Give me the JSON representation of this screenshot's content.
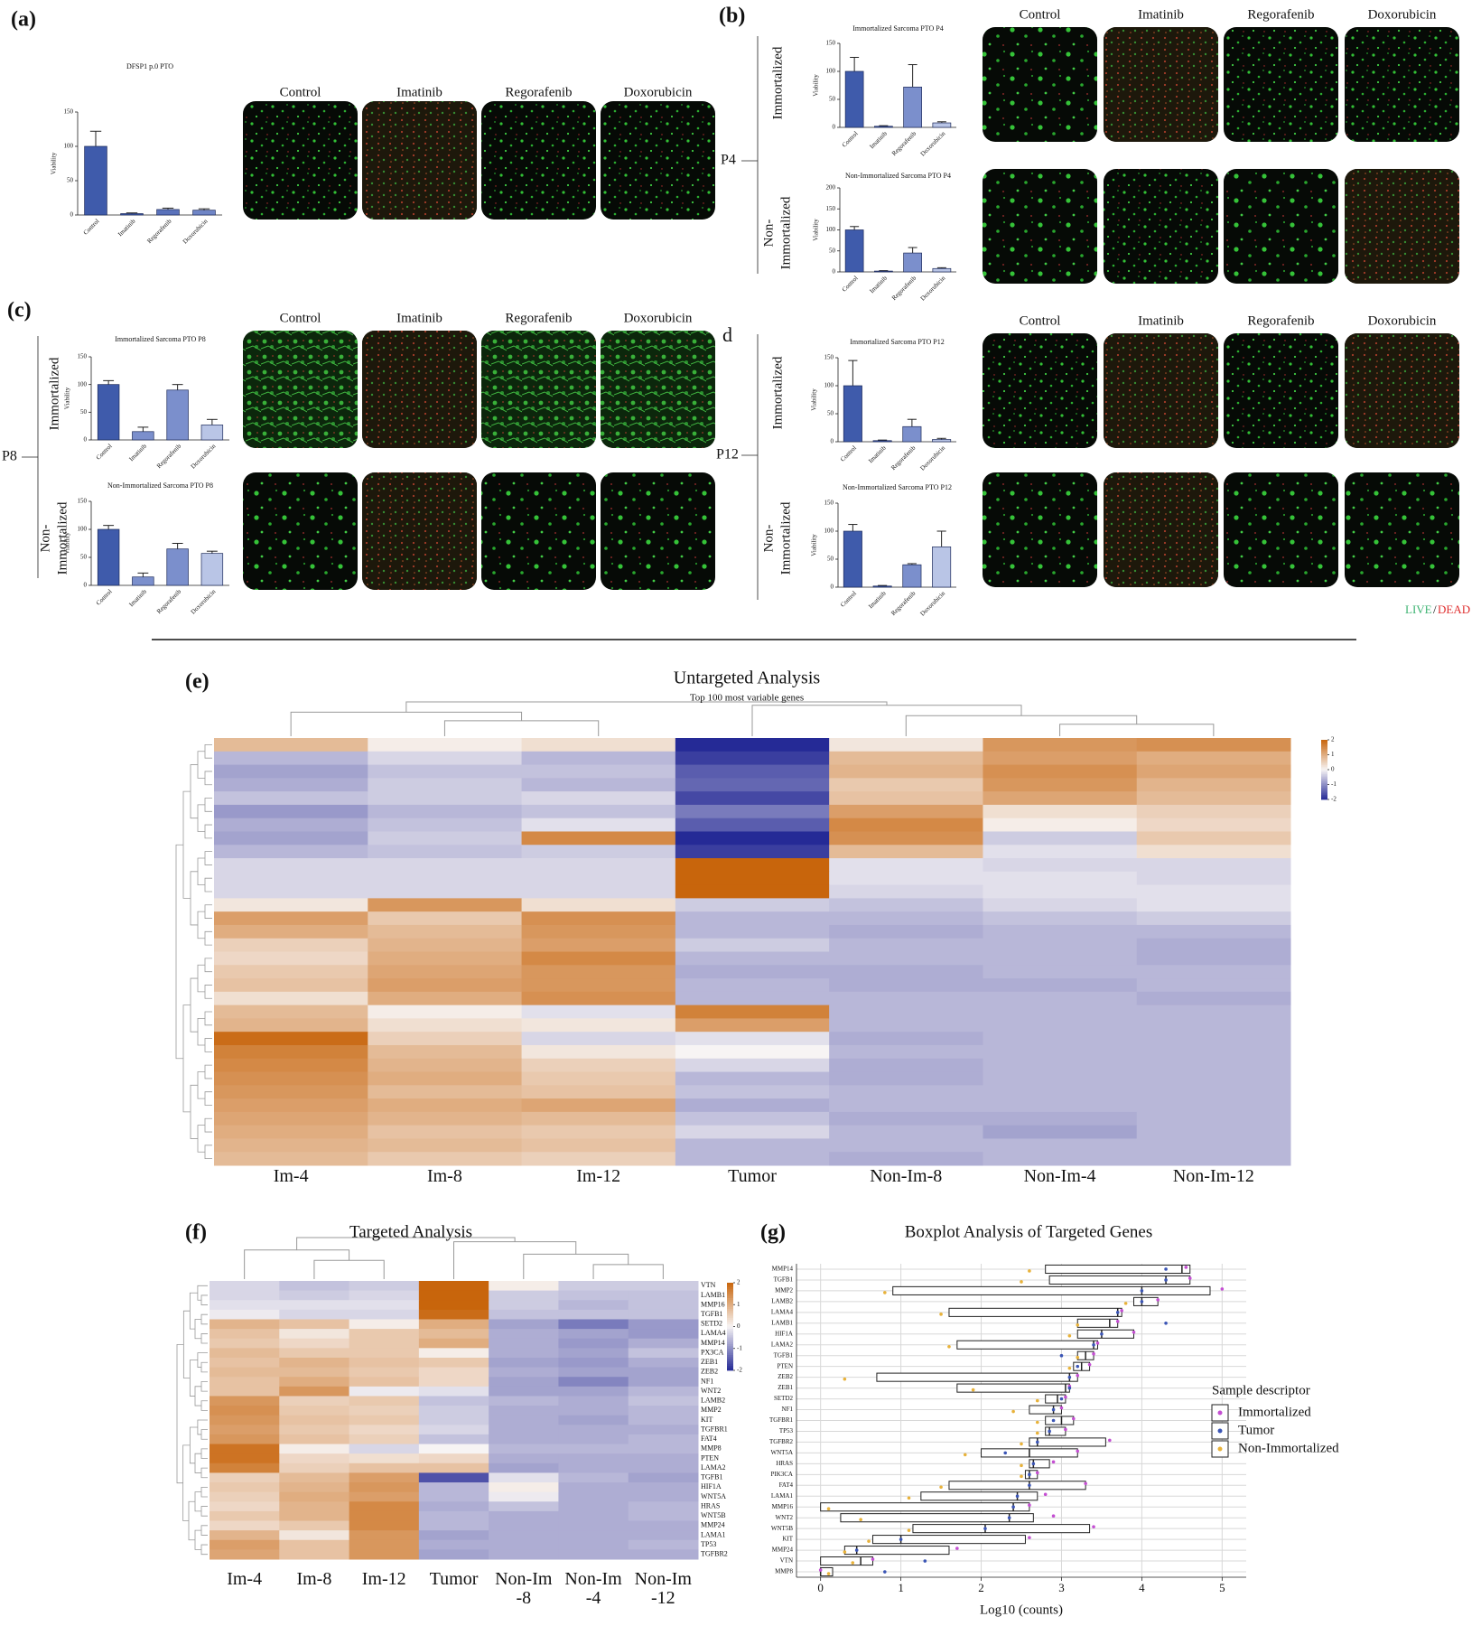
{
  "panel_labels": {
    "a": "(a)",
    "b": "(b)",
    "c": "(c)",
    "d": "d",
    "e": "(e)",
    "f": "(f)",
    "g": "(g)"
  },
  "treatments": [
    "Control",
    "Imatinib",
    "Regorafenib",
    "Doxorubicin"
  ],
  "groups": {
    "b": "P4",
    "c": "P8",
    "d": "P12"
  },
  "row_labels": {
    "immortalized": "Immortalized",
    "non_immortalized": [
      "Non-",
      "Immortalized"
    ]
  },
  "live_dead": {
    "live": "LIVE",
    "slash": "/",
    "dead": "DEAD"
  },
  "chart_data": [
    {
      "type": "bar",
      "title": "DFSP1 p.0 PTO",
      "y_label": "Viability",
      "categories": [
        "Control",
        "Imatinib",
        "Regorafenib",
        "Doxorubicin"
      ],
      "values": [
        100,
        2,
        8,
        7
      ],
      "errors": [
        22,
        1,
        2,
        2
      ],
      "colors": [
        "#3f5bab",
        "#3f5bab",
        "#5a72bb",
        "#6f85c6"
      ],
      "ylim": [
        0,
        150
      ],
      "yticks": [
        0,
        50,
        100,
        150
      ]
    },
    {
      "type": "bar",
      "title": "Immortalized Sarcoma PTO P4",
      "y_label": "Viability",
      "categories": [
        "Control",
        "Imatinib",
        "Regorafenib",
        "Doxorubicin"
      ],
      "values": [
        100,
        2,
        72,
        8
      ],
      "errors": [
        25,
        1,
        40,
        2
      ],
      "colors": [
        "#3f5bab",
        "#3f5bab",
        "#7b8fcc",
        "#b9c5e6"
      ],
      "ylim": [
        0,
        150
      ],
      "yticks": [
        0,
        50,
        100,
        150
      ]
    },
    {
      "type": "bar",
      "title": "Non-Immortalized Sarcoma PTO P4",
      "y_label": "Viability",
      "categories": [
        "Control",
        "Imatinib",
        "Regorafenib",
        "Doxorubicin"
      ],
      "values": [
        100,
        2,
        45,
        8
      ],
      "errors": [
        8,
        1,
        13,
        2
      ],
      "colors": [
        "#3f5bab",
        "#3f5bab",
        "#7b8fcc",
        "#b9c5e6"
      ],
      "ylim": [
        0,
        200
      ],
      "yticks": [
        0,
        50,
        100,
        150,
        200
      ]
    },
    {
      "type": "bar",
      "title": "Immortalized Sarcoma PTO P8",
      "y_label": "Viability",
      "categories": [
        "Control",
        "Imatinib",
        "Regorafenib",
        "Doxorubicin"
      ],
      "values": [
        100,
        15,
        90,
        27
      ],
      "errors": [
        7,
        8,
        10,
        10
      ],
      "colors": [
        "#3f5bab",
        "#7b8fcc",
        "#7b8fcc",
        "#b9c5e6"
      ],
      "ylim": [
        0,
        150
      ],
      "yticks": [
        0,
        50,
        100,
        150
      ]
    },
    {
      "type": "bar",
      "title": "Non-Immortalized Sarcoma PTO P8",
      "y_label": "Viability",
      "categories": [
        "Control",
        "Imatinib",
        "Regorafenib",
        "Doxorubicin"
      ],
      "values": [
        100,
        15,
        65,
        57
      ],
      "errors": [
        7,
        7,
        10,
        4
      ],
      "colors": [
        "#3f5bab",
        "#7b8fcc",
        "#7b8fcc",
        "#b9c5e6"
      ],
      "ylim": [
        0,
        150
      ],
      "yticks": [
        0,
        50,
        100,
        150
      ]
    },
    {
      "type": "bar",
      "title": "Immortalized Sarcoma PTO P12",
      "y_label": "Viability",
      "categories": [
        "Control",
        "Imatinib",
        "Regorafenib",
        "Doxorubicin"
      ],
      "values": [
        100,
        2,
        27,
        4
      ],
      "errors": [
        45,
        1,
        13,
        2
      ],
      "colors": [
        "#3f5bab",
        "#3f5bab",
        "#7b8fcc",
        "#b9c5e6"
      ],
      "ylim": [
        0,
        150
      ],
      "yticks": [
        0,
        50,
        100,
        150
      ]
    },
    {
      "type": "bar",
      "title": "Non-Immortalized Sarcoma PTO P12",
      "y_label": "Viability",
      "categories": [
        "Control",
        "Imatinib",
        "Regorafenib",
        "Doxorubicin"
      ],
      "values": [
        100,
        2,
        40,
        72
      ],
      "errors": [
        12,
        1,
        2,
        28
      ],
      "colors": [
        "#3f5bab",
        "#3f5bab",
        "#7b8fcc",
        "#b9c5e6"
      ],
      "ylim": [
        0,
        150
      ],
      "yticks": [
        0,
        50,
        100,
        150
      ]
    },
    {
      "type": "heatmap",
      "title": "Untargeted Analysis",
      "subtitle": "Top 100 most variable genes",
      "columns": [
        "Im-4",
        "Im-8",
        "Im-12",
        "Tumor",
        "Non-Im-8",
        "Non-Im-4",
        "Non-Im-12"
      ],
      "clim": [
        -2,
        2
      ],
      "colorbar_ticks": [
        2,
        1,
        0,
        -1,
        -2
      ],
      "colors": [
        "#252a96",
        "#f7f4f4",
        "#c8650c"
      ],
      "values": [
        [
          0.8,
          0.1,
          0.3,
          -2,
          0.2,
          1.3,
          1.4
        ],
        [
          -0.6,
          -0.3,
          -0.6,
          -1.8,
          0.8,
          1.2,
          1.0
        ],
        [
          -0.8,
          -0.5,
          -0.5,
          -1.5,
          0.9,
          1.4,
          1.1
        ],
        [
          -0.7,
          -0.4,
          -0.6,
          -1.4,
          0.6,
          1.3,
          0.9
        ],
        [
          -0.5,
          -0.4,
          -0.3,
          -1.7,
          0.7,
          1.1,
          0.8
        ],
        [
          -0.9,
          -0.6,
          -0.5,
          -1.2,
          1.2,
          0.3,
          0.5
        ],
        [
          -0.7,
          -0.5,
          -0.2,
          -1.5,
          1.5,
          0.1,
          0.4
        ],
        [
          -0.8,
          -0.4,
          1.5,
          -2,
          1.4,
          -0.4,
          0.6
        ],
        [
          -0.6,
          -0.5,
          -0.4,
          -1.8,
          0.8,
          -0.2,
          0.3
        ],
        [
          -0.3,
          -0.3,
          -0.3,
          2,
          -0.2,
          -0.3,
          -0.3
        ],
        [
          -0.3,
          -0.3,
          -0.3,
          2,
          -0.2,
          -0.2,
          -0.3
        ],
        [
          -0.3,
          -0.3,
          -0.3,
          2,
          -0.3,
          -0.2,
          -0.2
        ],
        [
          0.2,
          1.3,
          0.3,
          -0.4,
          -0.5,
          -0.3,
          -0.2
        ],
        [
          1.2,
          0.6,
          1.4,
          -0.6,
          -0.6,
          -0.5,
          -0.4
        ],
        [
          1.0,
          0.8,
          1.3,
          -0.6,
          -0.7,
          -0.6,
          -0.6
        ],
        [
          0.5,
          0.9,
          1.2,
          -0.4,
          -0.6,
          -0.6,
          -0.7
        ],
        [
          0.4,
          1.0,
          1.5,
          -0.6,
          -0.6,
          -0.6,
          -0.7
        ],
        [
          0.6,
          1.1,
          1.3,
          -0.7,
          -0.7,
          -0.6,
          -0.6
        ],
        [
          0.7,
          1.2,
          1.3,
          -0.6,
          -0.7,
          -0.7,
          -0.6
        ],
        [
          0.3,
          1.0,
          1.4,
          -0.6,
          -0.6,
          -0.6,
          -0.7
        ],
        [
          0.8,
          0.1,
          -0.2,
          1.6,
          -0.6,
          -0.6,
          -0.6
        ],
        [
          0.9,
          0.3,
          0.2,
          1.2,
          -0.6,
          -0.6,
          -0.6
        ],
        [
          1.9,
          0.5,
          -0.3,
          -0.2,
          -0.7,
          -0.6,
          -0.6
        ],
        [
          1.6,
          0.8,
          0.2,
          0.0,
          -0.6,
          -0.6,
          -0.6
        ],
        [
          1.5,
          0.9,
          0.5,
          -0.3,
          -0.7,
          -0.6,
          -0.6
        ],
        [
          1.4,
          1.0,
          0.6,
          -0.6,
          -0.7,
          -0.6,
          -0.6
        ],
        [
          1.3,
          0.8,
          0.7,
          -0.5,
          -0.6,
          -0.6,
          -0.6
        ],
        [
          1.2,
          1.0,
          1.1,
          -0.7,
          -0.6,
          -0.6,
          -0.6
        ],
        [
          1.1,
          0.9,
          0.8,
          -0.5,
          -0.7,
          -0.7,
          -0.6
        ],
        [
          1.0,
          0.7,
          0.6,
          -0.3,
          -0.6,
          -0.8,
          -0.6
        ],
        [
          0.9,
          0.8,
          0.7,
          -0.6,
          -0.6,
          -0.6,
          -0.6
        ],
        [
          0.8,
          0.6,
          0.5,
          -0.6,
          -0.7,
          -0.6,
          -0.6
        ]
      ]
    },
    {
      "type": "heatmap",
      "title": "Targeted Analysis",
      "columns": [
        "Im-4",
        "Im-8",
        "Im-12",
        "Tumor",
        "Non-Im -8",
        "Non-Im -4",
        "Non-Im -12"
      ],
      "rows": [
        "VTN",
        "LAMB1",
        "MMP16",
        "TGFB1",
        "SETD2",
        "LAMA4",
        "MMP14",
        "PX3CA",
        "ZEB1",
        "ZEB2",
        "NF1",
        "WNT2",
        "LAMB2",
        "MMP2",
        "KIT",
        "TGFBR1",
        "FAT4",
        "MMP8",
        "PTEN",
        "LAMA2",
        "TGFB1",
        "HIF1A",
        "WNT5A",
        "HRAS",
        "WNT5B",
        "MMP24",
        "LAMA1",
        "TP53",
        "TGFBR2"
      ],
      "clim": [
        -2,
        2
      ],
      "colorbar_ticks": [
        2,
        1,
        0,
        -1,
        -2
      ],
      "colors": [
        "#252a96",
        "#f7f4f4",
        "#c8650c"
      ],
      "values": [
        [
          -0.3,
          -0.5,
          -0.4,
          2,
          0.1,
          -0.4,
          -0.4
        ],
        [
          -0.3,
          -0.4,
          -0.3,
          2,
          -0.4,
          -0.5,
          -0.5
        ],
        [
          -0.2,
          -0.2,
          -0.2,
          2,
          -0.4,
          -0.6,
          -0.5
        ],
        [
          -0.1,
          -0.3,
          -0.3,
          1.9,
          -0.5,
          -0.5,
          -0.5
        ],
        [
          0.9,
          0.7,
          0.1,
          1.0,
          -0.8,
          -1.2,
          -0.9
        ],
        [
          0.7,
          0.2,
          0.6,
          0.8,
          -0.7,
          -0.8,
          -0.9
        ],
        [
          0.6,
          0.4,
          0.6,
          1.0,
          -0.7,
          -0.9,
          -0.7
        ],
        [
          0.8,
          0.6,
          0.6,
          0.1,
          -0.7,
          -0.8,
          -0.5
        ],
        [
          0.7,
          0.9,
          0.7,
          0.6,
          -0.8,
          -0.9,
          -0.7
        ],
        [
          0.8,
          0.8,
          0.6,
          0.4,
          -0.7,
          -0.8,
          -0.8
        ],
        [
          0.7,
          1.0,
          0.7,
          0.4,
          -0.8,
          -1.1,
          -0.8
        ],
        [
          0.7,
          1.3,
          -0.1,
          -0.2,
          -0.8,
          -0.8,
          -0.6
        ],
        [
          1.3,
          0.5,
          0.6,
          -0.5,
          -0.6,
          -0.7,
          -0.5
        ],
        [
          1.4,
          0.6,
          0.5,
          -0.4,
          -0.7,
          -0.7,
          -0.6
        ],
        [
          1.3,
          0.7,
          0.6,
          -0.4,
          -0.7,
          -0.8,
          -0.6
        ],
        [
          1.2,
          0.6,
          0.4,
          -0.3,
          -0.7,
          -0.7,
          -0.7
        ],
        [
          1.3,
          0.7,
          0.5,
          -0.5,
          -0.7,
          -0.7,
          -0.6
        ],
        [
          1.8,
          0.1,
          -0.3,
          0.0,
          -0.6,
          -0.6,
          -0.6
        ],
        [
          1.8,
          0.4,
          0.3,
          0.4,
          -0.7,
          -0.7,
          -0.7
        ],
        [
          1.6,
          0.5,
          0.7,
          0.7,
          -0.8,
          -0.7,
          -0.7
        ],
        [
          0.5,
          0.8,
          1.2,
          -1.6,
          -0.2,
          -0.6,
          -0.8
        ],
        [
          0.6,
          0.9,
          1.3,
          -0.6,
          0.1,
          -0.7,
          -0.7
        ],
        [
          0.5,
          1.0,
          1.2,
          -0.6,
          -0.1,
          -0.7,
          -0.7
        ],
        [
          0.4,
          0.9,
          1.5,
          -0.7,
          -0.5,
          -0.7,
          -0.6
        ],
        [
          0.6,
          0.9,
          1.5,
          -0.6,
          -0.7,
          -0.7,
          -0.6
        ],
        [
          0.4,
          0.6,
          1.5,
          -0.6,
          -0.7,
          -0.7,
          -0.7
        ],
        [
          0.9,
          0.2,
          1.3,
          -0.8,
          -0.7,
          -0.7,
          -0.7
        ],
        [
          1.2,
          0.7,
          1.3,
          -0.7,
          -0.7,
          -0.7,
          -0.6
        ],
        [
          1.1,
          0.7,
          1.3,
          -0.8,
          -0.7,
          -0.7,
          -0.7
        ]
      ]
    },
    {
      "type": "boxplot",
      "title": "Boxplot Analysis of Targeted Genes",
      "x_label": "Log10 (counts)",
      "categories": [
        "MMP14",
        "TGFB1",
        "MMP2",
        "LAMB2",
        "LAMA4",
        "LAMB1",
        "HIF1A",
        "LAMA2",
        "TGFB1",
        "PTEN",
        "ZEB2",
        "ZEB1",
        "SETD2",
        "NF1",
        "TGFBR1",
        "TP53",
        "TGFBR2",
        "WNT5A",
        "HRAS",
        "PIK3CA",
        "FAT4",
        "LAMA1",
        "MMP16",
        "WNT2",
        "WNT5B",
        "KIT",
        "MMP24",
        "VTN",
        "MMP8"
      ],
      "q1": [
        2.8,
        2.85,
        0.9,
        3.9,
        1.6,
        3.2,
        3.2,
        1.7,
        3.2,
        3.15,
        0.7,
        1.7,
        2.8,
        2.6,
        2.8,
        2.8,
        2.6,
        2.0,
        2.6,
        2.55,
        1.6,
        1.25,
        0.0,
        0.25,
        1.15,
        0.65,
        0.3,
        0.0,
        0.0
      ],
      "median": [
        4.5,
        4.3,
        4.0,
        4.0,
        3.7,
        3.6,
        3.5,
        3.4,
        3.3,
        3.25,
        3.1,
        3.05,
        2.95,
        2.9,
        3.0,
        2.85,
        2.7,
        2.6,
        2.65,
        2.6,
        2.6,
        2.45,
        2.4,
        2.35,
        2.05,
        1.0,
        0.45,
        0.5,
        0.0
      ],
      "q3": [
        4.6,
        4.6,
        4.85,
        4.2,
        3.75,
        3.7,
        3.9,
        3.45,
        3.4,
        3.35,
        3.2,
        3.1,
        3.05,
        3.0,
        3.15,
        3.05,
        3.55,
        3.2,
        2.85,
        2.7,
        3.3,
        2.7,
        2.6,
        2.65,
        3.35,
        2.55,
        1.6,
        0.65,
        0.15
      ],
      "xlim": [
        -0.3,
        5.3
      ],
      "xticks": [
        0,
        1,
        2,
        3,
        4,
        5
      ],
      "grid": true,
      "legend_title": "Sample descriptor",
      "series": [
        {
          "name": "Immortalized",
          "color": "#c44fd2",
          "values": [
            4.55,
            4.6,
            5.0,
            4.2,
            3.75,
            3.7,
            3.9,
            3.45,
            3.4,
            3.35,
            3.2,
            3.1,
            3.05,
            3.0,
            3.15,
            3.05,
            3.6,
            3.2,
            2.9,
            2.7,
            3.3,
            2.8,
            2.6,
            2.9,
            3.4,
            2.6,
            1.7,
            0.65,
            0.0
          ]
        },
        {
          "name": "Tumor",
          "color": "#3b55b5",
          "values": [
            4.3,
            4.3,
            4.0,
            4.0,
            3.7,
            4.3,
            3.5,
            3.4,
            3.0,
            3.2,
            3.1,
            3.1,
            3.0,
            2.9,
            2.9,
            2.85,
            2.7,
            2.3,
            2.65,
            2.6,
            2.6,
            2.45,
            2.4,
            2.35,
            2.05,
            1.0,
            0.45,
            1.3,
            0.8
          ]
        },
        {
          "name": "Non-Immortalized",
          "color": "#e8b23a",
          "values": [
            2.6,
            2.5,
            0.8,
            3.8,
            1.5,
            3.2,
            3.1,
            1.6,
            3.2,
            3.1,
            0.3,
            1.9,
            2.7,
            2.4,
            2.7,
            2.7,
            2.5,
            1.8,
            2.5,
            2.5,
            1.5,
            1.1,
            0.1,
            0.5,
            1.1,
            0.6,
            0.3,
            0.4,
            0.1
          ]
        }
      ]
    }
  ]
}
